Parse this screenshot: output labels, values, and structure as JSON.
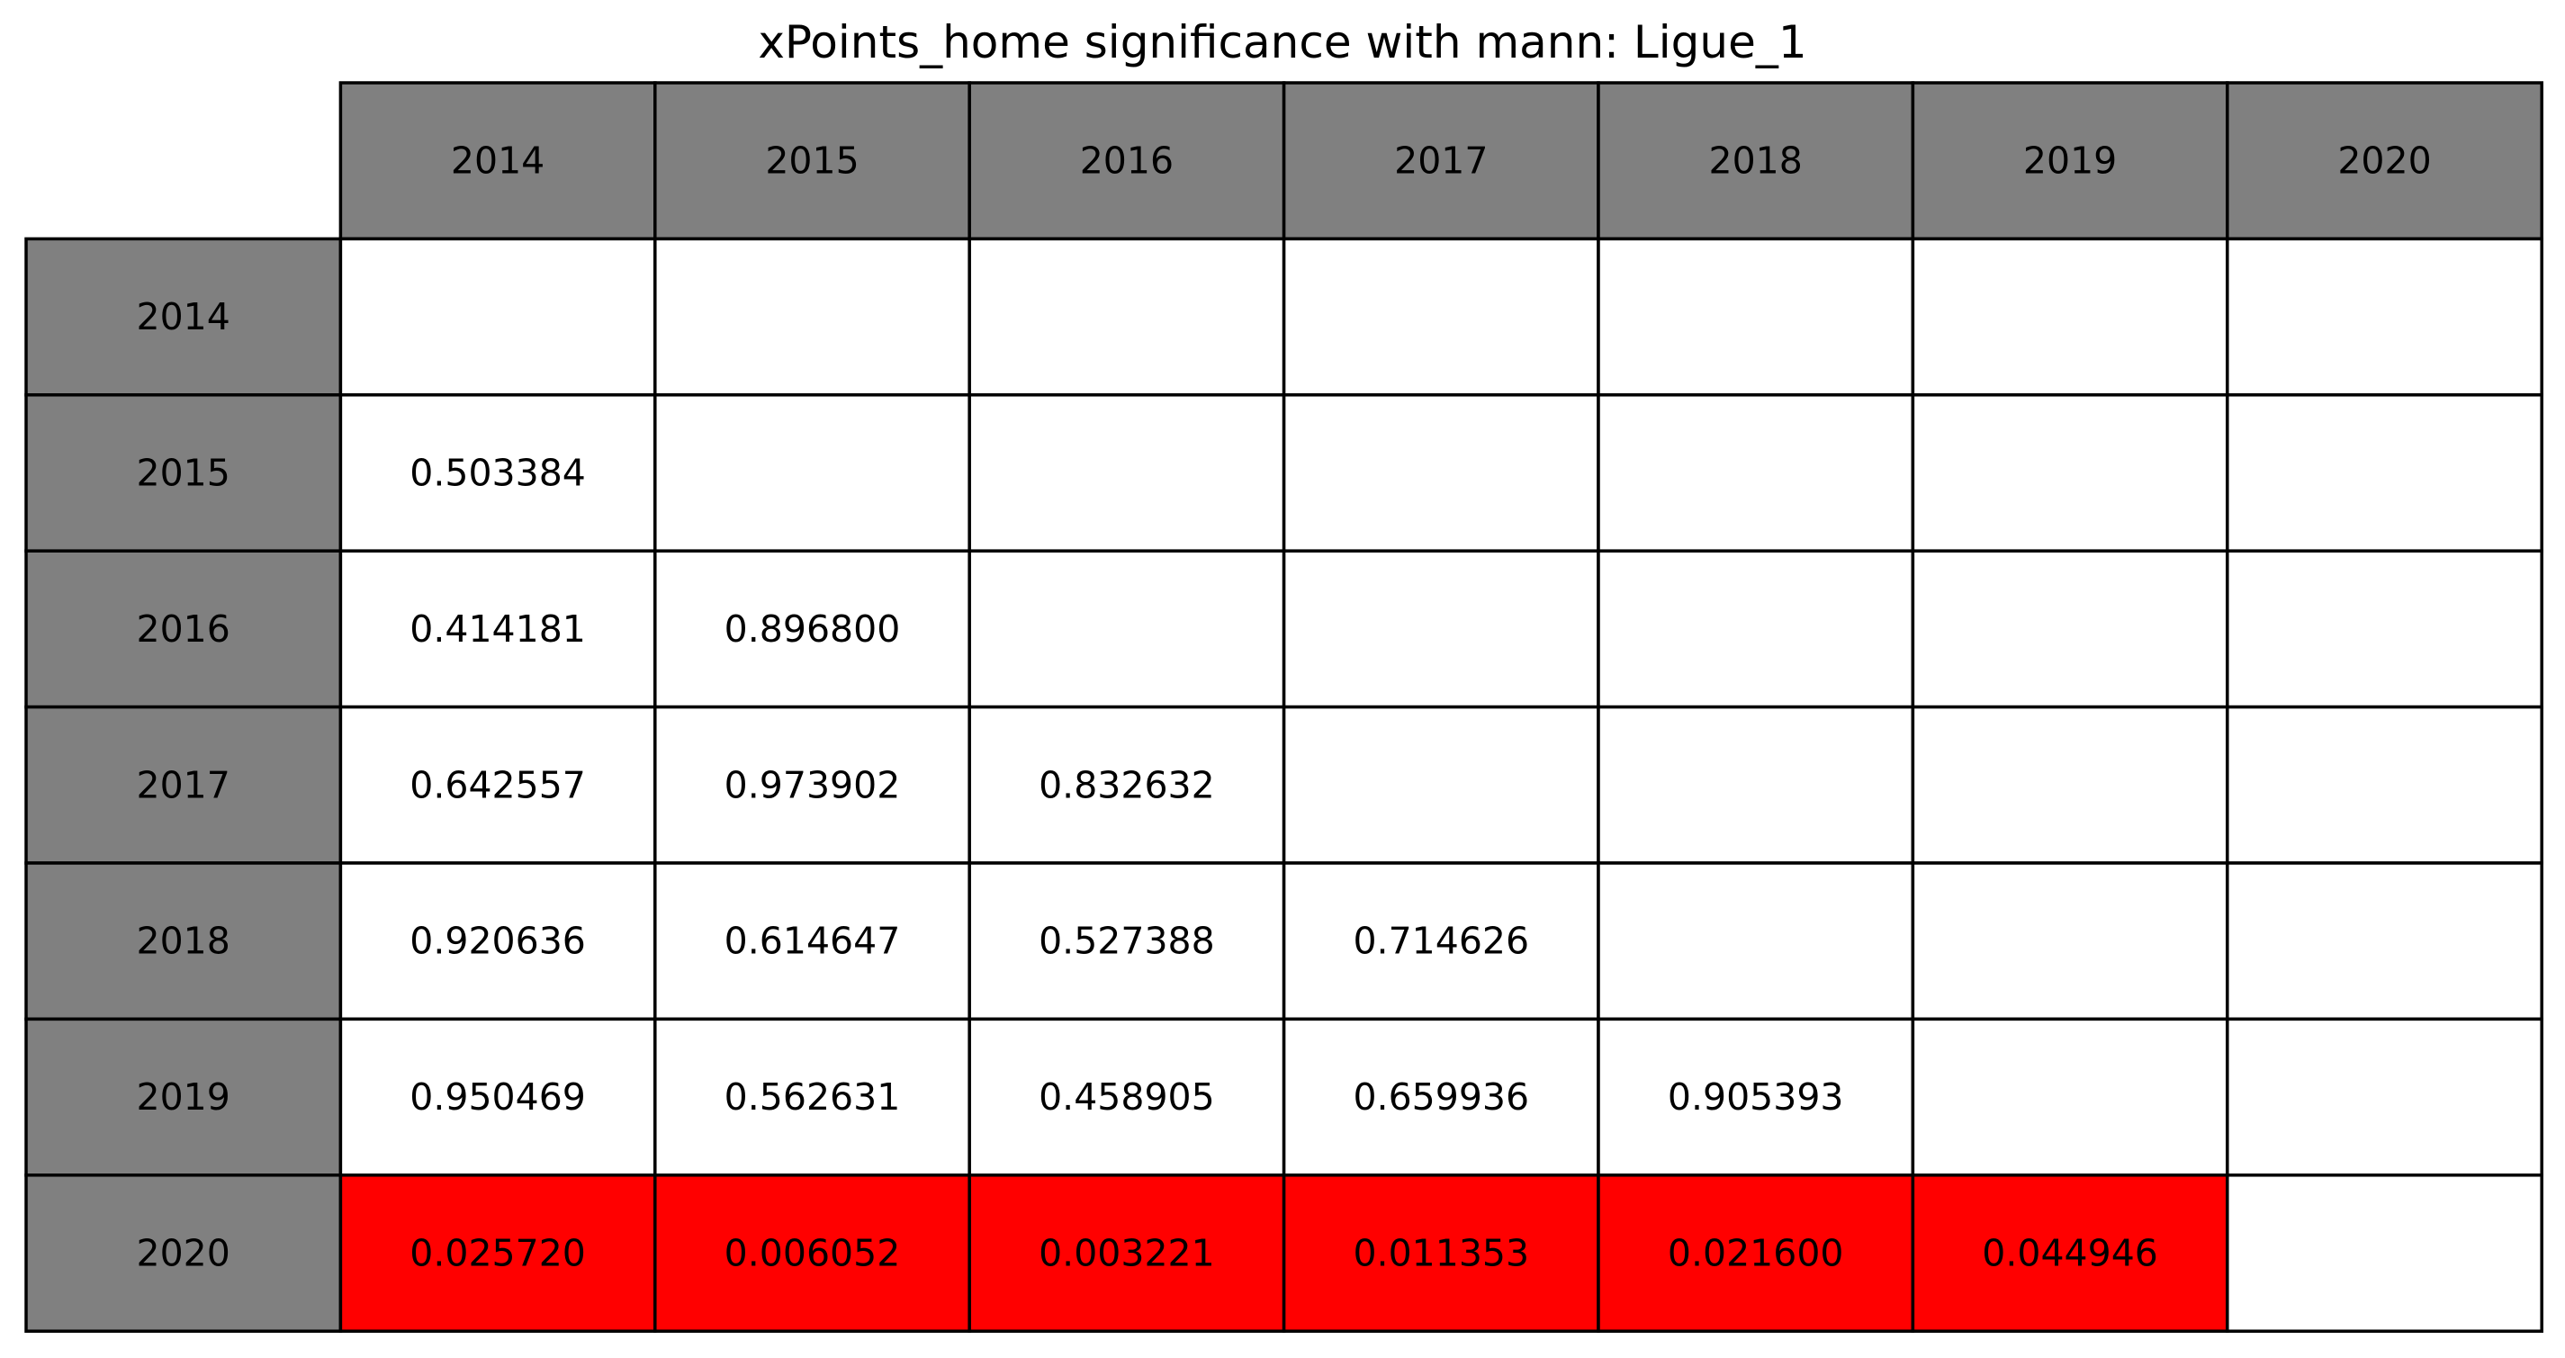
{
  "chart_data": {
    "type": "table",
    "title": "xPoints_home significance with mann: Ligue_1",
    "columns": [
      "2014",
      "2015",
      "2016",
      "2017",
      "2018",
      "2019",
      "2020"
    ],
    "rows": [
      "2014",
      "2015",
      "2016",
      "2017",
      "2018",
      "2019",
      "2020"
    ],
    "cells": [
      [
        "",
        "",
        "",
        "",
        "",
        "",
        ""
      ],
      [
        "0.503384",
        "",
        "",
        "",
        "",
        "",
        ""
      ],
      [
        "0.414181",
        "0.896800",
        "",
        "",
        "",
        "",
        ""
      ],
      [
        "0.642557",
        "0.973902",
        "0.832632",
        "",
        "",
        "",
        ""
      ],
      [
        "0.920636",
        "0.614647",
        "0.527388",
        "0.714626",
        "",
        "",
        ""
      ],
      [
        "0.950469",
        "0.562631",
        "0.458905",
        "0.659936",
        "0.905393",
        "",
        ""
      ],
      [
        "0.025720",
        "0.006052",
        "0.003221",
        "0.011353",
        "0.021600",
        "0.044946",
        ""
      ]
    ],
    "colors": {
      "header": "#808080",
      "cell": "#ffffff",
      "significant": "#ff0000",
      "border": "#000000"
    }
  }
}
